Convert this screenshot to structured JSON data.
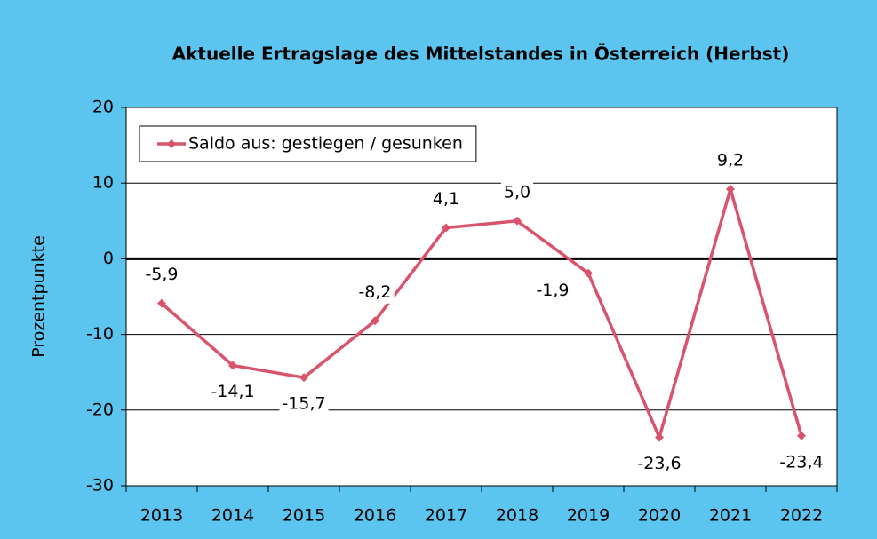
{
  "chart_data": {
    "type": "line",
    "title": "Aktuelle Ertragslage des Mittelstandes in Österreich (Herbst)",
    "ylabel": "Prozentpunkte",
    "categories": [
      "2013",
      "2014",
      "2015",
      "2016",
      "2017",
      "2018",
      "2019",
      "2020",
      "2021",
      "2022"
    ],
    "series": [
      {
        "name": "Saldo aus: gestiegen / gesunken",
        "color": "#d9536d",
        "values": [
          -5.9,
          -14.1,
          -15.7,
          -8.2,
          4.1,
          5.0,
          -1.9,
          -23.6,
          9.2,
          -23.4
        ],
        "value_labels": [
          "-5,9",
          "-14,1",
          "-15,7",
          "-8,2",
          "4,1",
          "5,0",
          "-1,9",
          "-23,6",
          "9,2",
          "-23,4"
        ]
      }
    ],
    "ylim": [
      -30,
      20
    ],
    "yticks": [
      20,
      10,
      0,
      -10,
      -20,
      -30
    ],
    "grid": true,
    "legend": "upper left"
  }
}
